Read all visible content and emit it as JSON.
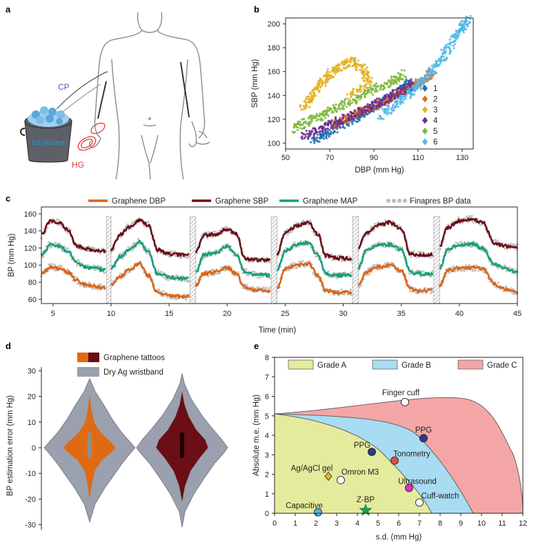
{
  "panel_labels": [
    "a",
    "b",
    "c",
    "d",
    "e"
  ],
  "panel_a": {
    "labels": {
      "cp": "CP",
      "bucket": "Ice bucket",
      "hg": "HG"
    },
    "colors": {
      "cp": "#5555aa",
      "hg": "#e33b3b",
      "bucket_text": "#1d9bd7",
      "ice": "#5aa7d8"
    }
  },
  "chart_data": [
    {
      "id": "b",
      "type": "scatter",
      "xlabel": "DBP (mm Hg)",
      "ylabel": "SBP (mm Hg)",
      "xlim": [
        50,
        135
      ],
      "ylim": [
        95,
        205
      ],
      "xticks": [
        50,
        70,
        90,
        110,
        130
      ],
      "yticks": [
        100,
        120,
        140,
        160,
        180,
        200
      ],
      "legend_position": "right",
      "series": [
        {
          "name": "1",
          "color": "#1f6fb4",
          "points": [
            [
              63,
              102
            ],
            [
              68,
              108
            ],
            [
              75,
              114
            ],
            [
              82,
              121
            ],
            [
              88,
              128
            ],
            [
              94,
              135
            ],
            [
              100,
              142
            ],
            [
              104,
              147
            ],
            [
              107,
              152
            ]
          ]
        },
        {
          "name": "2",
          "color": "#e06a1a",
          "points": [
            [
              72,
              115
            ],
            [
              78,
              121
            ],
            [
              84,
              126
            ],
            [
              90,
              131
            ],
            [
              96,
              136
            ],
            [
              102,
              142
            ],
            [
              108,
              148
            ],
            [
              113,
              154
            ],
            [
              117,
              160
            ]
          ]
        },
        {
          "name": "3",
          "color": "#e3b21e",
          "points": [
            [
              58,
              130
            ],
            [
              62,
              140
            ],
            [
              66,
              150
            ],
            [
              70,
              158
            ],
            [
              75,
              164
            ],
            [
              80,
              169
            ],
            [
              85,
              162
            ],
            [
              88,
              150
            ],
            [
              78,
              140
            ]
          ]
        },
        {
          "name": "4",
          "color": "#6b2b8e",
          "points": [
            [
              58,
              105
            ],
            [
              65,
              111
            ],
            [
              72,
              117
            ],
            [
              80,
              123
            ],
            [
              88,
              130
            ],
            [
              95,
              136
            ],
            [
              102,
              143
            ],
            [
              108,
              150
            ]
          ]
        },
        {
          "name": "5",
          "color": "#7db83a",
          "points": [
            [
              53,
              112
            ],
            [
              60,
              118
            ],
            [
              67,
              124
            ],
            [
              74,
              130
            ],
            [
              82,
              137
            ],
            [
              90,
              145
            ],
            [
              98,
              152
            ],
            [
              104,
              158
            ]
          ]
        },
        {
          "name": "6",
          "color": "#4fb8e8",
          "points": [
            [
              93,
              122
            ],
            [
              100,
              133
            ],
            [
              106,
              142
            ],
            [
              111,
              150
            ],
            [
              116,
              160
            ],
            [
              121,
              172
            ],
            [
              126,
              186
            ],
            [
              130,
              197
            ],
            [
              133,
              204
            ]
          ]
        }
      ]
    },
    {
      "id": "c",
      "type": "line",
      "xlabel": "Time (min)",
      "ylabel": "BP (mm Hg)",
      "xlim": [
        4,
        45
      ],
      "ylim": [
        55,
        168
      ],
      "xticks": [
        5,
        10,
        15,
        20,
        25,
        30,
        35,
        40,
        45
      ],
      "yticks": [
        60,
        80,
        100,
        120,
        140,
        160
      ],
      "legend_position": "top",
      "gaps": [
        [
          9.6,
          10.0
        ],
        [
          16.8,
          17.3
        ],
        [
          23.8,
          24.3
        ],
        [
          30.8,
          31.3
        ],
        [
          37.8,
          38.3
        ]
      ],
      "segments": [
        {
          "x": [
            4.0,
            4.8,
            5.5,
            6.3,
            7.0,
            7.8,
            8.6,
            9.5
          ],
          "sbp": [
            135,
            152,
            150,
            141,
            123,
            119,
            117,
            116
          ],
          "map": [
            112,
            124,
            122,
            116,
            103,
            98,
            96,
            94
          ],
          "dbp": [
            90,
            98,
            96,
            92,
            82,
            77,
            75,
            73
          ]
        },
        {
          "x": [
            10.0,
            10.8,
            11.6,
            12.4,
            13.2,
            14.0,
            15.0,
            16.0,
            16.7
          ],
          "sbp": [
            118,
            136,
            145,
            152,
            147,
            118,
            113,
            112,
            112
          ],
          "map": [
            96,
            110,
            118,
            127,
            116,
            90,
            86,
            84,
            84
          ],
          "dbp": [
            78,
            87,
            94,
            102,
            88,
            68,
            64,
            63,
            63
          ]
        },
        {
          "x": [
            17.3,
            18.0,
            19.0,
            20.0,
            20.8,
            21.5,
            22.3,
            23.7
          ],
          "sbp": [
            115,
            135,
            136,
            142,
            136,
            108,
            106,
            106
          ],
          "map": [
            92,
            112,
            114,
            122,
            112,
            92,
            89,
            88
          ],
          "dbp": [
            76,
            90,
            92,
            97,
            90,
            74,
            71,
            70
          ]
        },
        {
          "x": [
            24.3,
            25.0,
            26.0,
            27.0,
            27.8,
            28.5,
            29.5,
            30.7
          ],
          "sbp": [
            113,
            138,
            146,
            150,
            136,
            111,
            108,
            108
          ],
          "map": [
            93,
            117,
            124,
            126,
            112,
            90,
            88,
            88
          ],
          "dbp": [
            72,
            96,
            100,
            102,
            88,
            70,
            68,
            68
          ]
        },
        {
          "x": [
            31.3,
            32.0,
            33.0,
            34.0,
            35.0,
            35.8,
            36.5,
            37.7
          ],
          "sbp": [
            120,
            138,
            147,
            150,
            142,
            113,
            112,
            112
          ],
          "map": [
            97,
            117,
            124,
            124,
            118,
            92,
            90,
            90
          ],
          "dbp": [
            76,
            92,
            98,
            100,
            93,
            72,
            70,
            70
          ]
        },
        {
          "x": [
            38.3,
            39.0,
            40.0,
            41.0,
            42.0,
            43.0,
            44.0,
            45.0
          ],
          "sbp": [
            121,
            144,
            152,
            154,
            150,
            126,
            122,
            121
          ],
          "map": [
            96,
            118,
            124,
            125,
            120,
            101,
            96,
            91
          ],
          "dbp": [
            76,
            94,
            96,
            97,
            96,
            78,
            72,
            69
          ]
        }
      ],
      "series": [
        {
          "name": "Graphene DBP",
          "key": "dbp",
          "color": "#dc6413"
        },
        {
          "name": "Graphene SBP",
          "key": "sbp",
          "color": "#6b0e16"
        },
        {
          "name": "Graphene MAP",
          "key": "map",
          "color": "#13a07a"
        },
        {
          "name": "Finapres BP data",
          "key": "finapres",
          "color": "#b8b8b8"
        }
      ]
    },
    {
      "id": "d",
      "type": "violin",
      "ylabel": "BP estimation error (mm Hg)",
      "ylim": [
        -32,
        32
      ],
      "yticks": [
        -30,
        -20,
        -10,
        0,
        10,
        20,
        30
      ],
      "legend": [
        {
          "name": "Graphene tattoos",
          "colors": [
            "#e06a13",
            "#6b0e16"
          ]
        },
        {
          "name": "Dry Ag wristband",
          "colors": [
            "#9aa0ad"
          ]
        }
      ],
      "violins": [
        {
          "center": "left",
          "outer_color": "#9aa0ad",
          "inner_color": "#e06a13",
          "range": [
            -29,
            27
          ],
          "outer_widths": [
            [
              -29,
              0.0
            ],
            [
              -22,
              0.12
            ],
            [
              -16,
              0.32
            ],
            [
              -11,
              0.52
            ],
            [
              -6,
              0.72
            ],
            [
              -2,
              0.9
            ],
            [
              0,
              1.0
            ],
            [
              2,
              0.9
            ],
            [
              6,
              0.7
            ],
            [
              11,
              0.5
            ],
            [
              17,
              0.3
            ],
            [
              22,
              0.12
            ],
            [
              27,
              0.0
            ]
          ],
          "inner_widths": [
            [
              -20,
              0.0
            ],
            [
              -14,
              0.08
            ],
            [
              -9,
              0.18
            ],
            [
              -5,
              0.42
            ],
            [
              -1,
              0.85
            ],
            [
              0,
              0.92
            ],
            [
              2,
              0.78
            ],
            [
              6,
              0.38
            ],
            [
              10,
              0.16
            ],
            [
              15,
              0.06
            ],
            [
              21,
              0.0
            ]
          ]
        },
        {
          "center": "right",
          "outer_color": "#9aa0ad",
          "inner_color": "#6b0e16",
          "range": [
            -31,
            29
          ],
          "outer_widths": [
            [
              -31,
              0.0
            ],
            [
              -25,
              0.06
            ],
            [
              -18,
              0.26
            ],
            [
              -12,
              0.48
            ],
            [
              -6,
              0.72
            ],
            [
              -2,
              0.92
            ],
            [
              0,
              1.0
            ],
            [
              3,
              0.88
            ],
            [
              8,
              0.64
            ],
            [
              13,
              0.42
            ],
            [
              19,
              0.2
            ],
            [
              25,
              0.05
            ],
            [
              29,
              0.0
            ]
          ],
          "inner_widths": [
            [
              -21,
              0.0
            ],
            [
              -15,
              0.1
            ],
            [
              -9,
              0.3
            ],
            [
              -4,
              0.62
            ],
            [
              0,
              0.92
            ],
            [
              3,
              0.82
            ],
            [
              7,
              0.5
            ],
            [
              12,
              0.24
            ],
            [
              17,
              0.08
            ],
            [
              22,
              0.0
            ]
          ]
        }
      ]
    },
    {
      "id": "e",
      "type": "scatter",
      "xlabel": "s.d. (mm Hg)",
      "ylabel": "Absolute m.e. (mm Hg)",
      "xlim": [
        0,
        12
      ],
      "ylim": [
        0,
        8
      ],
      "xticks": [
        0,
        1,
        2,
        3,
        4,
        5,
        6,
        7,
        8,
        9,
        10,
        11,
        12
      ],
      "yticks": [
        0,
        1,
        2,
        3,
        4,
        5,
        6,
        7,
        8
      ],
      "legend_position": "top",
      "regions": [
        {
          "name": "Grade A",
          "color": "#e4eb9c"
        },
        {
          "name": "Grade B",
          "color": "#a7dcf3"
        },
        {
          "name": "Grade C",
          "color": "#f4a6a6"
        }
      ],
      "points": [
        {
          "name": "Finger cuff",
          "x": 6.3,
          "y": 5.7,
          "color": "#ffffff",
          "marker": "circle"
        },
        {
          "name": "PPG",
          "x": 7.2,
          "y": 3.85,
          "color": "#2b3a8f",
          "marker": "circle"
        },
        {
          "name": "PPG",
          "x": 4.7,
          "y": 3.15,
          "color": "#2b3a8f",
          "marker": "circle"
        },
        {
          "name": "Tonometry",
          "x": 5.8,
          "y": 2.7,
          "color": "#e34b4b",
          "marker": "circle"
        },
        {
          "name": "Ag/AgCl gel",
          "x": 2.6,
          "y": 1.9,
          "color": "#f0b021",
          "marker": "diamond"
        },
        {
          "name": "Omron M3",
          "x": 3.2,
          "y": 1.7,
          "color": "#ffffff",
          "marker": "circle"
        },
        {
          "name": "Ultrasound",
          "x": 6.5,
          "y": 1.3,
          "color": "#e22ad3",
          "marker": "circle"
        },
        {
          "name": "Cuff-watch",
          "x": 7.0,
          "y": 0.55,
          "color": "#ffffff",
          "marker": "circle"
        },
        {
          "name": "Capacitive",
          "x": 2.1,
          "y": 0.05,
          "color": "#4fb8e8",
          "marker": "circle"
        },
        {
          "name": "Z-BP",
          "x": 4.4,
          "y": 0.15,
          "color": "#1aa052",
          "marker": "star"
        }
      ]
    }
  ]
}
